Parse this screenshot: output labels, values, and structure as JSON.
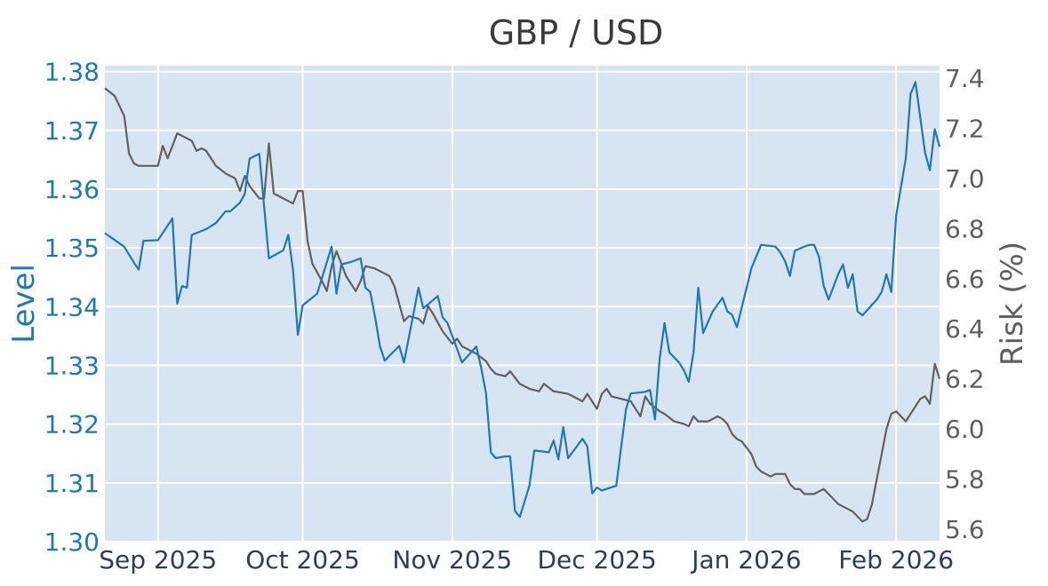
{
  "chart_data": {
    "type": "line",
    "title": "GBP / USD",
    "y_left_label": "Level",
    "y_right_label": "Risk (%)",
    "x_range": [
      "2025-08-21",
      "2026-02-10"
    ],
    "y_left_range": [
      1.3,
      1.381
    ],
    "y_right_range": [
      5.55,
      7.45
    ],
    "x_ticks": [
      {
        "date": "2025-09-01",
        "label": "Sep 2025"
      },
      {
        "date": "2025-10-01",
        "label": "Oct 2025"
      },
      {
        "date": "2025-11-01",
        "label": "Nov 2025"
      },
      {
        "date": "2025-12-01",
        "label": "Dec 2025"
      },
      {
        "date": "2026-01-01",
        "label": "Jan 2026"
      },
      {
        "date": "2026-02-01",
        "label": "Feb 2026"
      }
    ],
    "y_left_ticks": [
      1.3,
      1.31,
      1.32,
      1.33,
      1.34,
      1.35,
      1.36,
      1.37,
      1.38
    ],
    "y_left_tick_labels": [
      "1.30",
      "1.31",
      "1.32",
      "1.33",
      "1.34",
      "1.35",
      "1.36",
      "1.37",
      "1.38"
    ],
    "y_right_ticks": [
      5.6,
      5.8,
      6.0,
      6.2,
      6.4,
      6.6,
      6.8,
      7.0,
      7.2,
      7.4
    ],
    "y_right_tick_labels": [
      "5.6",
      "5.8",
      "6.0",
      "6.2",
      "6.4",
      "6.6",
      "6.8",
      "7.0",
      "7.2",
      "7.4"
    ],
    "grid": true,
    "colors": {
      "plot_bg": "#d6e5f1",
      "grid": "#ffffff",
      "level": "#1f77b4",
      "risk": "#616161"
    },
    "series": [
      {
        "axis": "left",
        "color": "#1f77b4",
        "points": [
          [
            "2025-08-21",
            1.3525
          ],
          [
            "2025-08-25",
            1.3502
          ],
          [
            "2025-08-27",
            1.3475
          ],
          [
            "2025-08-28",
            1.3463
          ],
          [
            "2025-08-29",
            1.3512
          ],
          [
            "2025-09-01",
            1.3513
          ],
          [
            "2025-09-04",
            1.355
          ],
          [
            "2025-09-05",
            1.3405
          ],
          [
            "2025-09-06",
            1.3435
          ],
          [
            "2025-09-07",
            1.3432
          ],
          [
            "2025-09-08",
            1.3522
          ],
          [
            "2025-09-11",
            1.3532
          ],
          [
            "2025-09-13",
            1.3542
          ],
          [
            "2025-09-15",
            1.3562
          ],
          [
            "2025-09-16",
            1.3562
          ],
          [
            "2025-09-18",
            1.3577
          ],
          [
            "2025-09-19",
            1.3592
          ],
          [
            "2025-09-20",
            1.3652
          ],
          [
            "2025-09-22",
            1.366
          ],
          [
            "2025-09-24",
            1.3482
          ],
          [
            "2025-09-27",
            1.3496
          ],
          [
            "2025-09-28",
            1.3522
          ],
          [
            "2025-09-29",
            1.3462
          ],
          [
            "2025-09-30",
            1.3352
          ],
          [
            "2025-10-01",
            1.3402
          ],
          [
            "2025-10-04",
            1.3422
          ],
          [
            "2025-10-07",
            1.3502
          ],
          [
            "2025-10-08",
            1.3422
          ],
          [
            "2025-10-09",
            1.3472
          ],
          [
            "2025-10-11",
            1.3476
          ],
          [
            "2025-10-13",
            1.3482
          ],
          [
            "2025-10-14",
            1.3432
          ],
          [
            "2025-10-15",
            1.3425
          ],
          [
            "2025-10-16",
            1.3382
          ],
          [
            "2025-10-17",
            1.3333
          ],
          [
            "2025-10-18",
            1.3308
          ],
          [
            "2025-10-21",
            1.3333
          ],
          [
            "2025-10-22",
            1.3305
          ],
          [
            "2025-10-25",
            1.3432
          ],
          [
            "2025-10-26",
            1.3397
          ],
          [
            "2025-10-29",
            1.3418
          ],
          [
            "2025-10-30",
            1.3382
          ],
          [
            "2025-10-31",
            1.3372
          ],
          [
            "2025-11-02",
            1.3328
          ],
          [
            "2025-11-03",
            1.3305
          ],
          [
            "2025-11-06",
            1.3332
          ],
          [
            "2025-11-07",
            1.3295
          ],
          [
            "2025-11-08",
            1.3252
          ],
          [
            "2025-11-09",
            1.3152
          ],
          [
            "2025-11-10",
            1.3142
          ],
          [
            "2025-11-12",
            1.3145
          ],
          [
            "2025-11-13",
            1.3145
          ],
          [
            "2025-11-14",
            1.3052
          ],
          [
            "2025-11-15",
            1.3042
          ],
          [
            "2025-11-17",
            1.3095
          ],
          [
            "2025-11-18",
            1.3155
          ],
          [
            "2025-11-21",
            1.3152
          ],
          [
            "2025-11-22",
            1.3172
          ],
          [
            "2025-11-23",
            1.314
          ],
          [
            "2025-11-24",
            1.3195
          ],
          [
            "2025-11-25",
            1.3142
          ],
          [
            "2025-11-28",
            1.3175
          ],
          [
            "2025-11-29",
            1.3162
          ],
          [
            "2025-11-30",
            1.3082
          ],
          [
            "2025-12-01",
            1.3092
          ],
          [
            "2025-12-02",
            1.3087
          ],
          [
            "2025-12-05",
            1.3095
          ],
          [
            "2025-12-07",
            1.3225
          ],
          [
            "2025-12-08",
            1.3252
          ],
          [
            "2025-12-11",
            1.3255
          ],
          [
            "2025-12-12",
            1.3258
          ],
          [
            "2025-12-13",
            1.3208
          ],
          [
            "2025-12-14",
            1.3312
          ],
          [
            "2025-12-15",
            1.3372
          ],
          [
            "2025-12-16",
            1.3322
          ],
          [
            "2025-12-18",
            1.3305
          ],
          [
            "2025-12-19",
            1.3292
          ],
          [
            "2025-12-20",
            1.3272
          ],
          [
            "2025-12-21",
            1.3322
          ],
          [
            "2025-12-22",
            1.3432
          ],
          [
            "2025-12-23",
            1.3355
          ],
          [
            "2025-12-25",
            1.3392
          ],
          [
            "2025-12-27",
            1.3415
          ],
          [
            "2025-12-28",
            1.3392
          ],
          [
            "2025-12-29",
            1.3386
          ],
          [
            "2025-12-30",
            1.3365
          ],
          [
            "2026-01-02",
            1.3465
          ],
          [
            "2026-01-04",
            1.3505
          ],
          [
            "2026-01-07",
            1.3502
          ],
          [
            "2026-01-08",
            1.3492
          ],
          [
            "2026-01-09",
            1.3477
          ],
          [
            "2026-01-10",
            1.3452
          ],
          [
            "2026-01-11",
            1.3495
          ],
          [
            "2026-01-13",
            1.3502
          ],
          [
            "2026-01-14",
            1.3505
          ],
          [
            "2026-01-15",
            1.3505
          ],
          [
            "2026-01-16",
            1.3485
          ],
          [
            "2026-01-17",
            1.3435
          ],
          [
            "2026-01-18",
            1.3412
          ],
          [
            "2026-01-20",
            1.3455
          ],
          [
            "2026-01-21",
            1.3472
          ],
          [
            "2026-01-22",
            1.3432
          ],
          [
            "2026-01-23",
            1.3455
          ],
          [
            "2026-01-24",
            1.3392
          ],
          [
            "2026-01-25",
            1.3385
          ],
          [
            "2026-01-28",
            1.3412
          ],
          [
            "2026-01-29",
            1.3425
          ],
          [
            "2026-01-30",
            1.3455
          ],
          [
            "2026-01-31",
            1.3425
          ],
          [
            "2026-02-01",
            1.3555
          ],
          [
            "2026-02-03",
            1.3652
          ],
          [
            "2026-02-04",
            1.3762
          ],
          [
            "2026-02-05",
            1.3782
          ],
          [
            "2026-02-06",
            1.3722
          ],
          [
            "2026-02-07",
            1.3662
          ],
          [
            "2026-02-08",
            1.3632
          ],
          [
            "2026-02-09",
            1.3702
          ],
          [
            "2026-02-10",
            1.3672
          ]
        ]
      },
      {
        "axis": "right",
        "color": "#616161",
        "points": [
          [
            "2025-08-21",
            7.36
          ],
          [
            "2025-08-23",
            7.33
          ],
          [
            "2025-08-24",
            7.29
          ],
          [
            "2025-08-25",
            7.25
          ],
          [
            "2025-08-26",
            7.1
          ],
          [
            "2025-08-27",
            7.06
          ],
          [
            "2025-08-28",
            7.05
          ],
          [
            "2025-08-30",
            7.05
          ],
          [
            "2025-09-01",
            7.05
          ],
          [
            "2025-09-02",
            7.13
          ],
          [
            "2025-09-03",
            7.08
          ],
          [
            "2025-09-05",
            7.18
          ],
          [
            "2025-09-08",
            7.15
          ],
          [
            "2025-09-09",
            7.11
          ],
          [
            "2025-09-10",
            7.12
          ],
          [
            "2025-09-11",
            7.11
          ],
          [
            "2025-09-13",
            7.05
          ],
          [
            "2025-09-15",
            7.02
          ],
          [
            "2025-09-16",
            7.01
          ],
          [
            "2025-09-17",
            7.0
          ],
          [
            "2025-09-18",
            6.95
          ],
          [
            "2025-09-19",
            7.01
          ],
          [
            "2025-09-20",
            6.97
          ],
          [
            "2025-09-22",
            6.92
          ],
          [
            "2025-09-23",
            6.92
          ],
          [
            "2025-09-24",
            7.14
          ],
          [
            "2025-09-25",
            6.94
          ],
          [
            "2025-09-27",
            6.92
          ],
          [
            "2025-09-29",
            6.9
          ],
          [
            "2025-09-30",
            6.95
          ],
          [
            "2025-10-01",
            6.95
          ],
          [
            "2025-10-02",
            6.75
          ],
          [
            "2025-10-03",
            6.66
          ],
          [
            "2025-10-05",
            6.59
          ],
          [
            "2025-10-06",
            6.55
          ],
          [
            "2025-10-07",
            6.65
          ],
          [
            "2025-10-08",
            6.71
          ],
          [
            "2025-10-09",
            6.66
          ],
          [
            "2025-10-10",
            6.61
          ],
          [
            "2025-10-12",
            6.55
          ],
          [
            "2025-10-13",
            6.59
          ],
          [
            "2025-10-14",
            6.65
          ],
          [
            "2025-10-16",
            6.64
          ],
          [
            "2025-10-18",
            6.62
          ],
          [
            "2025-10-19",
            6.61
          ],
          [
            "2025-10-20",
            6.57
          ],
          [
            "2025-10-22",
            6.43
          ],
          [
            "2025-10-23",
            6.45
          ],
          [
            "2025-10-25",
            6.44
          ],
          [
            "2025-10-26",
            6.42
          ],
          [
            "2025-10-27",
            6.49
          ],
          [
            "2025-10-28",
            6.46
          ],
          [
            "2025-10-30",
            6.39
          ],
          [
            "2025-11-01",
            6.34
          ],
          [
            "2025-11-02",
            6.36
          ],
          [
            "2025-11-03",
            6.33
          ],
          [
            "2025-11-06",
            6.3
          ],
          [
            "2025-11-08",
            6.27
          ],
          [
            "2025-11-09",
            6.24
          ],
          [
            "2025-11-10",
            6.22
          ],
          [
            "2025-11-12",
            6.21
          ],
          [
            "2025-11-13",
            6.23
          ],
          [
            "2025-11-15",
            6.18
          ],
          [
            "2025-11-17",
            6.16
          ],
          [
            "2025-11-19",
            6.15
          ],
          [
            "2025-11-20",
            6.18
          ],
          [
            "2025-11-22",
            6.15
          ],
          [
            "2025-11-25",
            6.14
          ],
          [
            "2025-11-26",
            6.13
          ],
          [
            "2025-11-28",
            6.11
          ],
          [
            "2025-11-29",
            6.14
          ],
          [
            "2025-12-01",
            6.08
          ],
          [
            "2025-12-02",
            6.14
          ],
          [
            "2025-12-03",
            6.16
          ],
          [
            "2025-12-04",
            6.13
          ],
          [
            "2025-12-06",
            6.12
          ],
          [
            "2025-12-08",
            6.11
          ],
          [
            "2025-12-09",
            6.08
          ],
          [
            "2025-12-10",
            6.05
          ],
          [
            "2025-12-11",
            6.13
          ],
          [
            "2025-12-12",
            6.1
          ],
          [
            "2025-12-14",
            6.07
          ],
          [
            "2025-12-15",
            6.06
          ],
          [
            "2025-12-17",
            6.03
          ],
          [
            "2025-12-19",
            6.02
          ],
          [
            "2025-12-20",
            6.01
          ],
          [
            "2025-12-21",
            6.05
          ],
          [
            "2025-12-22",
            6.03
          ],
          [
            "2025-12-24",
            6.03
          ],
          [
            "2025-12-26",
            6.05
          ],
          [
            "2025-12-27",
            6.04
          ],
          [
            "2025-12-28",
            6.02
          ],
          [
            "2025-12-29",
            5.98
          ],
          [
            "2025-12-30",
            5.96
          ],
          [
            "2025-12-31",
            5.95
          ],
          [
            "2026-01-02",
            5.9
          ],
          [
            "2026-01-03",
            5.85
          ],
          [
            "2026-01-04",
            5.83
          ],
          [
            "2026-01-06",
            5.81
          ],
          [
            "2026-01-07",
            5.82
          ],
          [
            "2026-01-09",
            5.82
          ],
          [
            "2026-01-10",
            5.78
          ],
          [
            "2026-01-11",
            5.76
          ],
          [
            "2026-01-12",
            5.76
          ],
          [
            "2026-01-13",
            5.74
          ],
          [
            "2026-01-15",
            5.74
          ],
          [
            "2026-01-17",
            5.76
          ],
          [
            "2026-01-19",
            5.72
          ],
          [
            "2026-01-20",
            5.7
          ],
          [
            "2026-01-22",
            5.68
          ],
          [
            "2026-01-23",
            5.67
          ],
          [
            "2026-01-24",
            5.65
          ],
          [
            "2026-01-25",
            5.63
          ],
          [
            "2026-01-26",
            5.64
          ],
          [
            "2026-01-27",
            5.7
          ],
          [
            "2026-01-28",
            5.8
          ],
          [
            "2026-01-29",
            5.9
          ],
          [
            "2026-01-30",
            6.0
          ],
          [
            "2026-01-31",
            6.06
          ],
          [
            "2026-02-01",
            6.07
          ],
          [
            "2026-02-02",
            6.05
          ],
          [
            "2026-02-03",
            6.03
          ],
          [
            "2026-02-04",
            6.06
          ],
          [
            "2026-02-05",
            6.09
          ],
          [
            "2026-02-06",
            6.12
          ],
          [
            "2026-02-07",
            6.13
          ],
          [
            "2026-02-08",
            6.1
          ],
          [
            "2026-02-09",
            6.26
          ],
          [
            "2026-02-10",
            6.2
          ]
        ]
      }
    ]
  }
}
